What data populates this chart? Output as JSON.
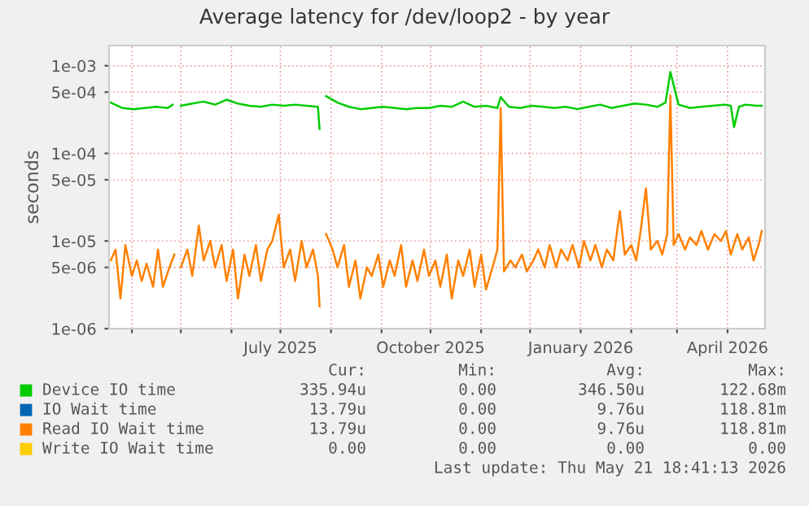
{
  "chart_data": {
    "type": "line",
    "title": "Average latency for /dev/loop2 - by year",
    "ylabel": "seconds",
    "log": "y",
    "ylim": [
      1e-06,
      0.0017
    ],
    "yticks": [
      {
        "value": 0.001,
        "label": "1e-03"
      },
      {
        "value": 0.0005,
        "label": "5e-04"
      },
      {
        "value": 0.0001,
        "label": "1e-04"
      },
      {
        "value": 5e-05,
        "label": "5e-05"
      },
      {
        "value": 1e-05,
        "label": "1e-05"
      },
      {
        "value": 5e-06,
        "label": "5e-06"
      },
      {
        "value": 1e-06,
        "label": "1e-06"
      }
    ],
    "xlim": [
      "2025-03-18",
      "2026-04-24"
    ],
    "xticks": [
      {
        "value": "2025-04-01",
        "label": null
      },
      {
        "value": "2025-05-01",
        "label": null
      },
      {
        "value": "2025-06-01",
        "label": null
      },
      {
        "value": "2025-07-01",
        "label": "July 2025"
      },
      {
        "value": "2025-08-01",
        "label": null
      },
      {
        "value": "2025-09-01",
        "label": null
      },
      {
        "value": "2025-10-01",
        "label": "October 2025"
      },
      {
        "value": "2025-11-01",
        "label": null
      },
      {
        "value": "2025-12-01",
        "label": null
      },
      {
        "value": "2026-01-01",
        "label": "January 2026"
      },
      {
        "value": "2026-02-01",
        "label": null
      },
      {
        "value": "2026-03-01",
        "label": null
      },
      {
        "value": "2026-04-01",
        "label": "April 2026"
      }
    ],
    "grid": true,
    "legend": "bottom",
    "line_style": "solid",
    "marker": "none",
    "series": [
      {
        "name": "Device IO time",
        "color": "#00cc00",
        "x": [
          "2025-03-19",
          "2025-03-26",
          "2025-04-02",
          "2025-04-09",
          "2025-04-16",
          "2025-04-23",
          "2025-04-26",
          "2025-04-28",
          "2025-05-01",
          "2025-05-08",
          "2025-05-15",
          "2025-05-22",
          "2025-05-29",
          "2025-06-05",
          "2025-06-12",
          "2025-06-19",
          "2025-06-26",
          "2025-07-03",
          "2025-07-10",
          "2025-07-17",
          "2025-07-24",
          "2025-07-25",
          "2025-07-27",
          "2025-07-29",
          "2025-08-05",
          "2025-08-12",
          "2025-08-19",
          "2025-08-26",
          "2025-09-02",
          "2025-09-09",
          "2025-09-16",
          "2025-09-23",
          "2025-09-30",
          "2025-10-07",
          "2025-10-14",
          "2025-10-21",
          "2025-10-28",
          "2025-11-04",
          "2025-11-11",
          "2025-11-13",
          "2025-11-18",
          "2025-11-25",
          "2025-12-02",
          "2025-12-09",
          "2025-12-16",
          "2025-12-23",
          "2025-12-30",
          "2026-01-06",
          "2026-01-13",
          "2026-01-20",
          "2026-01-27",
          "2026-02-03",
          "2026-02-10",
          "2026-02-17",
          "2026-02-22",
          "2026-02-25",
          "2026-03-02",
          "2026-03-09",
          "2026-03-16",
          "2026-03-23",
          "2026-03-30",
          "2026-04-03",
          "2026-04-05",
          "2026-04-08",
          "2026-04-12",
          "2026-04-19",
          "2026-04-22"
        ],
        "values": [
          0.00038,
          0.00033,
          0.00032,
          0.00033,
          0.00034,
          0.00033,
          0.00036,
          null,
          0.00035,
          0.00037,
          0.00039,
          0.00036,
          0.00041,
          0.00037,
          0.00035,
          0.00034,
          0.00036,
          0.00035,
          0.00036,
          0.00035,
          0.00034,
          0.00019,
          null,
          0.00045,
          0.00038,
          0.00034,
          0.00032,
          0.00033,
          0.00034,
          0.00033,
          0.00032,
          0.00033,
          0.00033,
          0.00035,
          0.00034,
          0.00039,
          0.00034,
          0.00035,
          0.00033,
          0.00044,
          0.00034,
          0.00033,
          0.00035,
          0.00034,
          0.00033,
          0.00034,
          0.00032,
          0.00034,
          0.00036,
          0.00033,
          0.00035,
          0.00037,
          0.00036,
          0.00034,
          0.00038,
          0.00085,
          0.00036,
          0.00033,
          0.00034,
          0.00035,
          0.00036,
          0.00035,
          0.0002,
          0.00034,
          0.00036,
          0.00035,
          0.00035
        ]
      },
      {
        "name": "IO Wait time",
        "color": "#0066b3"
      },
      {
        "name": "Read IO Wait time",
        "color": "#ff8000",
        "x": [
          "2025-03-19",
          "2025-03-22",
          "2025-03-25",
          "2025-03-28",
          "2025-04-01",
          "2025-04-04",
          "2025-04-07",
          "2025-04-10",
          "2025-04-14",
          "2025-04-17",
          "2025-04-20",
          "2025-04-24",
          "2025-04-27",
          "2025-04-28",
          "2025-05-01",
          "2025-05-05",
          "2025-05-08",
          "2025-05-12",
          "2025-05-15",
          "2025-05-19",
          "2025-05-22",
          "2025-05-26",
          "2025-05-29",
          "2025-06-02",
          "2025-06-05",
          "2025-06-09",
          "2025-06-12",
          "2025-06-16",
          "2025-06-19",
          "2025-06-23",
          "2025-06-26",
          "2025-06-30",
          "2025-07-03",
          "2025-07-07",
          "2025-07-10",
          "2025-07-14",
          "2025-07-17",
          "2025-07-21",
          "2025-07-24",
          "2025-07-25",
          "2025-07-27",
          "2025-07-29",
          "2025-08-02",
          "2025-08-05",
          "2025-08-09",
          "2025-08-12",
          "2025-08-16",
          "2025-08-19",
          "2025-08-23",
          "2025-08-26",
          "2025-08-30",
          "2025-09-02",
          "2025-09-06",
          "2025-09-09",
          "2025-09-13",
          "2025-09-16",
          "2025-09-20",
          "2025-09-23",
          "2025-09-27",
          "2025-09-30",
          "2025-10-04",
          "2025-10-07",
          "2025-10-11",
          "2025-10-14",
          "2025-10-18",
          "2025-10-21",
          "2025-10-25",
          "2025-10-28",
          "2025-11-01",
          "2025-11-04",
          "2025-11-08",
          "2025-11-11",
          "2025-11-13",
          "2025-11-15",
          "2025-11-19",
          "2025-11-22",
          "2025-11-26",
          "2025-11-29",
          "2025-12-03",
          "2025-12-06",
          "2025-12-10",
          "2025-12-13",
          "2025-12-17",
          "2025-12-20",
          "2025-12-24",
          "2025-12-27",
          "2025-12-31",
          "2026-01-03",
          "2026-01-07",
          "2026-01-10",
          "2026-01-14",
          "2026-01-17",
          "2026-01-21",
          "2026-01-25",
          "2026-01-28",
          "2026-02-01",
          "2026-02-04",
          "2026-02-07",
          "2026-02-10",
          "2026-02-13",
          "2026-02-17",
          "2026-02-20",
          "2026-02-23",
          "2026-02-25",
          "2026-02-27",
          "2026-03-02",
          "2026-03-06",
          "2026-03-09",
          "2026-03-13",
          "2026-03-16",
          "2026-03-20",
          "2026-03-24",
          "2026-03-28",
          "2026-03-31",
          "2026-04-03",
          "2026-04-07",
          "2026-04-10",
          "2026-04-14",
          "2026-04-17",
          "2026-04-20",
          "2026-04-22"
        ],
        "values": [
          6e-06,
          8e-06,
          2.2e-06,
          9e-06,
          4e-06,
          6e-06,
          3.5e-06,
          5.5e-06,
          3e-06,
          8e-06,
          3e-06,
          5e-06,
          7e-06,
          null,
          5e-06,
          8e-06,
          4e-06,
          1.5e-05,
          6e-06,
          1e-05,
          5e-06,
          9e-06,
          3.5e-06,
          8e-06,
          2.2e-06,
          7e-06,
          4e-06,
          9e-06,
          3.5e-06,
          8e-06,
          1e-05,
          2e-05,
          5e-06,
          8e-06,
          3.5e-06,
          1e-05,
          5e-06,
          8e-06,
          4e-06,
          1.8e-06,
          null,
          1.2e-05,
          8e-06,
          5e-06,
          9e-06,
          3e-06,
          6e-06,
          2.2e-06,
          5e-06,
          4e-06,
          7e-06,
          3e-06,
          6e-06,
          4e-06,
          9e-06,
          3e-06,
          6e-06,
          3.5e-06,
          8e-06,
          4e-06,
          6e-06,
          3e-06,
          7e-06,
          2.2e-06,
          6e-06,
          4e-06,
          8e-06,
          3e-06,
          7e-06,
          2.8e-06,
          5e-06,
          8e-06,
          0.00033,
          4.5e-06,
          6e-06,
          5e-06,
          7e-06,
          4.5e-06,
          6e-06,
          8e-06,
          5e-06,
          9e-06,
          5e-06,
          8e-06,
          6e-06,
          9e-06,
          5e-06,
          1e-05,
          6e-06,
          9e-06,
          5e-06,
          8e-06,
          6e-06,
          2.2e-05,
          7e-06,
          9e-06,
          6e-06,
          1.4e-05,
          4e-05,
          8e-06,
          1e-05,
          7e-06,
          1.2e-05,
          0.00046,
          9e-06,
          1.2e-05,
          8e-06,
          1.1e-05,
          9e-06,
          1.3e-05,
          8e-06,
          1.2e-05,
          1e-05,
          1.3e-05,
          7e-06,
          1.2e-05,
          8e-06,
          1.1e-05,
          6e-06,
          9e-06,
          1.3e-05
        ]
      },
      {
        "name": "Write IO Wait time",
        "color": "#ffcc00"
      }
    ],
    "annotations": [
      "Cur:",
      "Min:",
      "Avg:",
      "Max:",
      "335.94u",
      "0.00",
      "346.50u",
      "122.68m",
      "13.79u",
      "0.00",
      "9.76u",
      "118.81m",
      "13.79u",
      "0.00",
      "9.76u",
      "118.81m",
      "0.00",
      "0.00",
      "0.00",
      "0.00",
      "Last update: Thu May 21 18:41:13 2026"
    ]
  }
}
